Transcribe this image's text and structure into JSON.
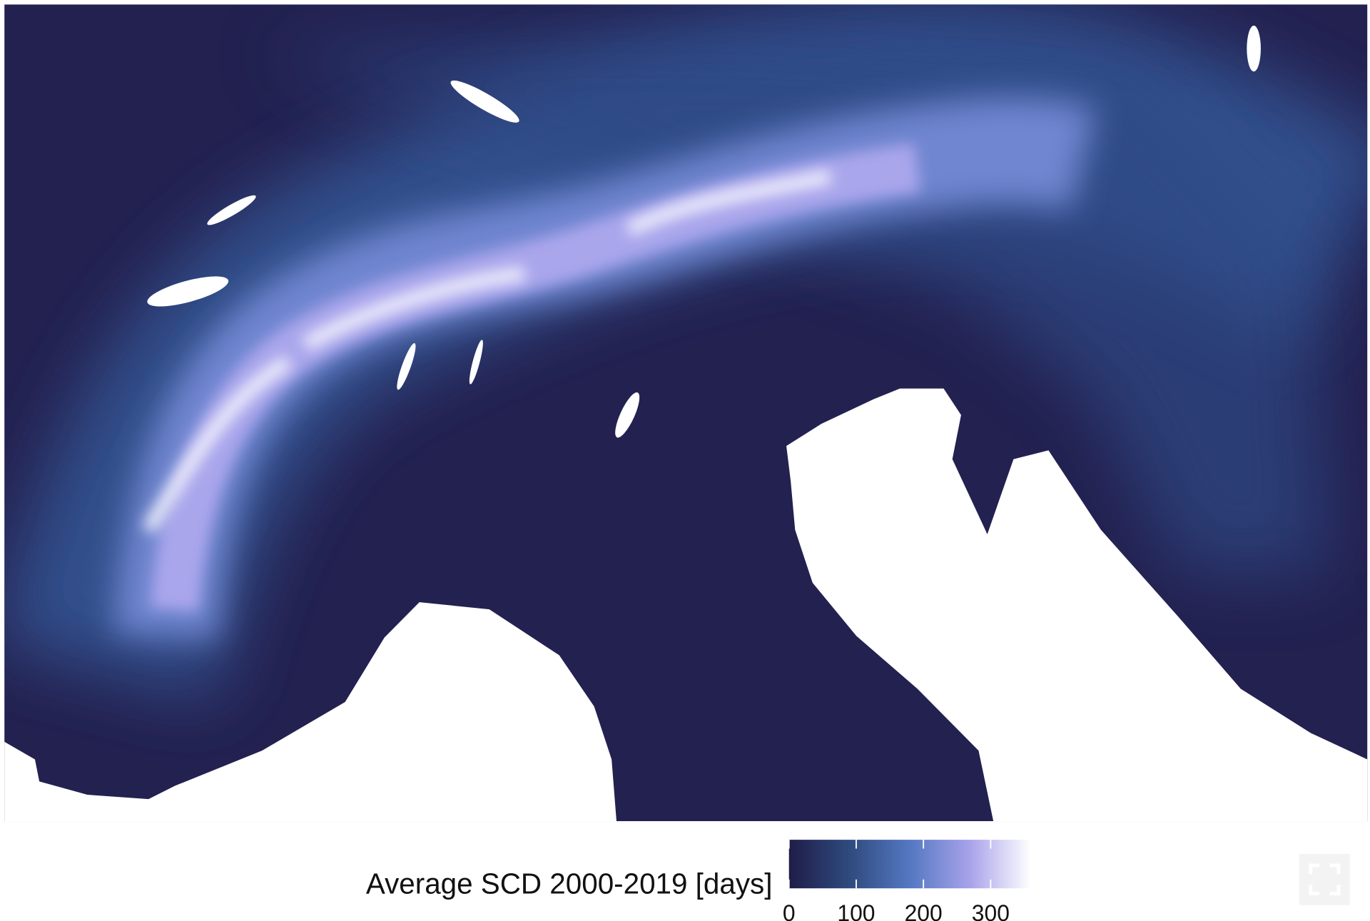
{
  "legend": {
    "title": "Average SCD 2000-2019 [days]",
    "lim": [
      0,
      360
    ],
    "ticks": [
      0,
      100,
      200,
      300
    ],
    "colors": [
      "#1f1c48",
      "#2f4a7e",
      "#5478c2",
      "#a9a3ea",
      "#ffffff"
    ]
  }
}
